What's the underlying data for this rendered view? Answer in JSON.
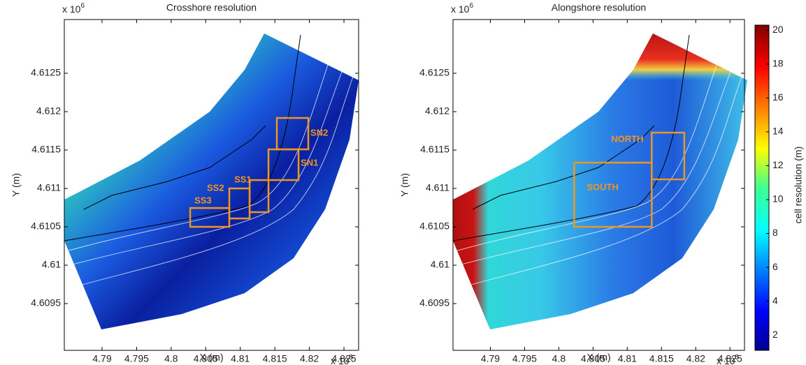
{
  "chart_data": [
    {
      "type": "heatmap",
      "title": "Crosshore resolution",
      "xlabel": "X (m)",
      "ylabel": "Y (m)",
      "x_multiplier": {
        "base": "x 10",
        "exponent": "5"
      },
      "y_multiplier": {
        "base": "x 10",
        "exponent": "6"
      },
      "xlim": [
        478454,
        482712
      ],
      "ylim": [
        4608891,
        4613200
      ],
      "xticks": [
        {
          "value": 479000,
          "label": "4.79"
        },
        {
          "value": 479500,
          "label": "4.795"
        },
        {
          "value": 480000,
          "label": "4.8"
        },
        {
          "value": 480500,
          "label": "4.805"
        },
        {
          "value": 481000,
          "label": "4.81"
        },
        {
          "value": 481500,
          "label": "4.815"
        },
        {
          "value": 482000,
          "label": "4.82"
        },
        {
          "value": 482500,
          "label": "4.825"
        }
      ],
      "yticks": [
        {
          "value": 4609500,
          "label": "4.6095"
        },
        {
          "value": 4610000,
          "label": "4.61"
        },
        {
          "value": 4610500,
          "label": "4.6105"
        },
        {
          "value": 4611000,
          "label": "4.611"
        },
        {
          "value": 4611500,
          "label": "4.6115"
        },
        {
          "value": 4612000,
          "label": "4.612"
        },
        {
          "value": 4612500,
          "label": "4.6125"
        }
      ],
      "regions": [
        {
          "label": "SS3",
          "x": [
            480275,
            480841
          ],
          "y": [
            4610500,
            4610745
          ]
        },
        {
          "label": "SS2",
          "x": [
            480841,
            481135
          ],
          "y": [
            4610609,
            4611000
          ]
        },
        {
          "label": "SS1",
          "x": [
            481135,
            481408
          ],
          "y": [
            4610691,
            4611109
          ]
        },
        {
          "label": "SN1",
          "x": [
            481408,
            481843
          ],
          "y": [
            4611109,
            4611509
          ]
        },
        {
          "label": "SN2",
          "x": [
            481529,
            481984
          ],
          "y": [
            4611509,
            4611918
          ]
        }
      ]
    },
    {
      "type": "heatmap",
      "title": "Alongshore resolution",
      "xlabel": "X (m)",
      "ylabel": "Y (m)",
      "x_multiplier": {
        "base": "x 10",
        "exponent": "5"
      },
      "y_multiplier": {
        "base": "x 10",
        "exponent": "6"
      },
      "xlim": [
        478454,
        482712
      ],
      "ylim": [
        4608891,
        4613200
      ],
      "xticks": [
        {
          "value": 479000,
          "label": "4.79"
        },
        {
          "value": 479500,
          "label": "4.795"
        },
        {
          "value": 480000,
          "label": "4.8"
        },
        {
          "value": 480500,
          "label": "4.805"
        },
        {
          "value": 481000,
          "label": "4.81"
        },
        {
          "value": 481500,
          "label": "4.815"
        },
        {
          "value": 482000,
          "label": "4.82"
        },
        {
          "value": 482500,
          "label": "4.825"
        }
      ],
      "yticks": [
        {
          "value": 4609500,
          "label": "4.6095"
        },
        {
          "value": 4610000,
          "label": "4.61"
        },
        {
          "value": 4610500,
          "label": "4.6105"
        },
        {
          "value": 4611000,
          "label": "4.611"
        },
        {
          "value": 4611500,
          "label": "4.6115"
        },
        {
          "value": 4612000,
          "label": "4.612"
        },
        {
          "value": 4612500,
          "label": "4.6125"
        }
      ],
      "regions": [
        {
          "label": "SOUTH",
          "x": [
            480224,
            481357
          ],
          "y": [
            4610500,
            4611336
          ]
        },
        {
          "label": "NORTH",
          "x": [
            481357,
            481833
          ],
          "y": [
            4611118,
            4611727
          ]
        }
      ],
      "colorbar": {
        "label": "cell resolution (m)",
        "lim": [
          1.1,
          20.3
        ],
        "ticks": [
          2,
          4,
          6,
          8,
          10,
          12,
          14,
          16,
          18,
          20
        ]
      }
    }
  ]
}
